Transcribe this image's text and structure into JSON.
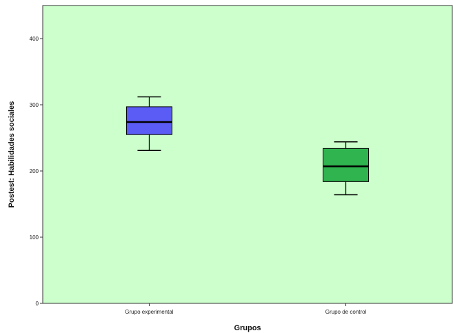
{
  "chart_data": {
    "type": "boxplot",
    "xlabel": "Grupos",
    "ylabel": "Postest: Habilidades sociales",
    "ylim": [
      0,
      450
    ],
    "yticks": [
      0,
      100,
      200,
      300,
      400
    ],
    "grid": false,
    "legend": "none",
    "plot_background": "#ccffcc",
    "categories": [
      "Grupo experimental",
      "Grupo de control"
    ],
    "boxes": [
      {
        "category": "Grupo experimental",
        "min": 231,
        "q1": 255,
        "median": 274,
        "q3": 297,
        "max": 312,
        "color": "#5b5bf5"
      },
      {
        "category": "Grupo de control",
        "min": 164,
        "q1": 184,
        "median": 207,
        "q3": 234,
        "max": 244,
        "color": "#2fb44f"
      }
    ]
  }
}
